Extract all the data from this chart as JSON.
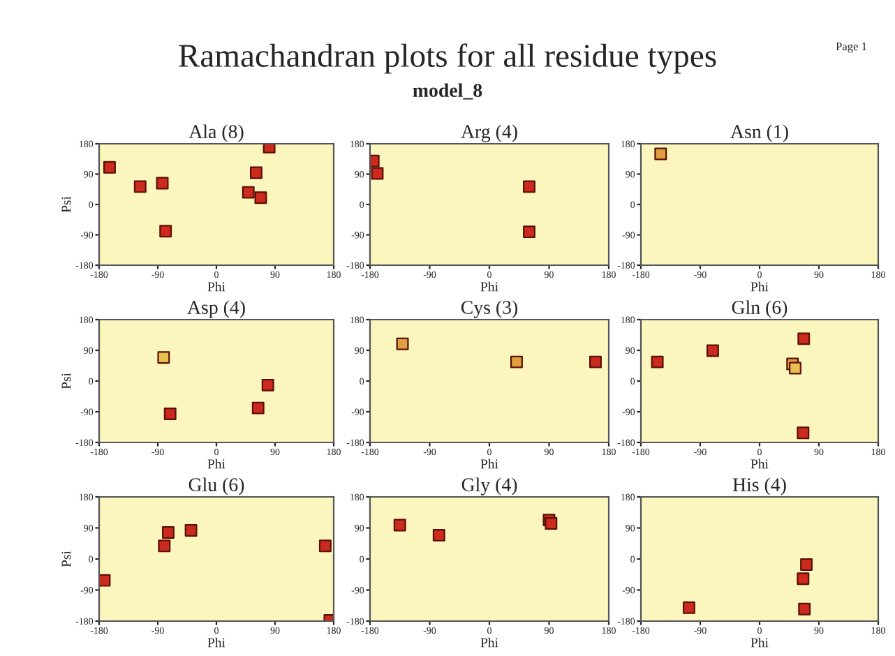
{
  "chart_data": [
    {
      "type": "other",
      "title": "Ramachandran plots for all residue types",
      "subtitle": "model_8",
      "annotations": [
        "Page 1"
      ]
    },
    {
      "type": "scatter",
      "title": "Ala (8)",
      "xlabel": "Phi",
      "ylabel": "Psi",
      "xlim": [
        -180,
        180
      ],
      "ylim": [
        -180,
        180
      ],
      "xticks": [
        -180,
        -90,
        0,
        90,
        180
      ],
      "yticks": [
        -180,
        -90,
        0,
        90,
        180
      ],
      "marker": "square",
      "grid": false,
      "x": [
        -164,
        -117,
        -83,
        -78,
        81,
        61,
        49,
        68
      ],
      "values": [
        110,
        53,
        63,
        -79,
        170,
        94,
        36,
        20
      ],
      "colors": [
        "#cc2a1c",
        "#cc2a1c",
        "#cc2a1c",
        "#cc2a1c",
        "#cc2a1c",
        "#cc2a1c",
        "#cc2a1c",
        "#cc2a1c"
      ]
    },
    {
      "type": "scatter",
      "title": "Arg (4)",
      "xlabel": "Phi",
      "xlim": [
        -180,
        180
      ],
      "ylim": [
        -180,
        180
      ],
      "xticks": [
        -180,
        -90,
        0,
        90,
        180
      ],
      "yticks": [
        -180,
        -90,
        0,
        90,
        180
      ],
      "marker": "square",
      "grid": false,
      "x": [
        -175,
        -169,
        60,
        60
      ],
      "values": [
        129,
        92,
        53,
        -81
      ],
      "colors": [
        "#cc2a1c",
        "#cc2a1c",
        "#cc2a1c",
        "#cc2a1c"
      ]
    },
    {
      "type": "scatter",
      "title": "Asn (1)",
      "xlabel": "Phi",
      "xlim": [
        -180,
        180
      ],
      "ylim": [
        -180,
        180
      ],
      "xticks": [
        -180,
        -90,
        0,
        90,
        180
      ],
      "yticks": [
        -180,
        -90,
        0,
        90,
        180
      ],
      "marker": "square",
      "grid": false,
      "x": [
        -150
      ],
      "values": [
        150
      ],
      "colors": [
        "#e0a040"
      ]
    },
    {
      "type": "scatter",
      "title": "Asp (4)",
      "xlabel": "Phi",
      "ylabel": "Psi",
      "xlim": [
        -180,
        180
      ],
      "ylim": [
        -180,
        180
      ],
      "xticks": [
        -180,
        -90,
        0,
        90,
        180
      ],
      "yticks": [
        -180,
        -90,
        0,
        90,
        180
      ],
      "marker": "square",
      "grid": false,
      "x": [
        -81,
        79,
        64,
        -71
      ],
      "values": [
        69,
        -12,
        -79,
        -96
      ],
      "colors": [
        "#e8c050",
        "#cc2a1c",
        "#cc2a1c",
        "#cc2a1c"
      ]
    },
    {
      "type": "scatter",
      "title": "Cys (3)",
      "xlabel": "Phi",
      "xlim": [
        -180,
        180
      ],
      "ylim": [
        -180,
        180
      ],
      "xticks": [
        -180,
        -90,
        0,
        90,
        180
      ],
      "yticks": [
        -180,
        -90,
        0,
        90,
        180
      ],
      "marker": "square",
      "grid": false,
      "x": [
        -131,
        41,
        160
      ],
      "values": [
        109,
        56,
        56
      ],
      "colors": [
        "#e0a040",
        "#e0a040",
        "#cc2a1c"
      ]
    },
    {
      "type": "scatter",
      "title": "Gln (6)",
      "xlabel": "Phi",
      "xlim": [
        -180,
        180
      ],
      "ylim": [
        -180,
        180
      ],
      "xticks": [
        -180,
        -90,
        0,
        90,
        180
      ],
      "yticks": [
        -180,
        -90,
        0,
        90,
        180
      ],
      "marker": "square",
      "grid": false,
      "x": [
        -155,
        -71,
        67,
        50,
        54,
        66
      ],
      "values": [
        56,
        89,
        124,
        50,
        38,
        -152
      ],
      "colors": [
        "#cc2a1c",
        "#cc2a1c",
        "#cc2a1c",
        "#e0a040",
        "#e8c050",
        "#cc2a1c"
      ]
    },
    {
      "type": "scatter",
      "title": "Glu (6)",
      "xlabel": "Phi",
      "ylabel": "Psi",
      "xlim": [
        -180,
        180
      ],
      "ylim": [
        -180,
        180
      ],
      "xticks": [
        -180,
        -90,
        0,
        90,
        180
      ],
      "yticks": [
        -180,
        -90,
        0,
        90,
        180
      ],
      "marker": "square",
      "grid": false,
      "x": [
        -172,
        -80,
        -74,
        -39,
        167,
        174
      ],
      "values": [
        -62,
        38,
        77,
        83,
        38,
        -178
      ],
      "colors": [
        "#cc2a1c",
        "#cc2a1c",
        "#cc2a1c",
        "#cc2a1c",
        "#cc2a1c",
        "#cc2a1c"
      ]
    },
    {
      "type": "scatter",
      "title": "Gly (4)",
      "xlabel": "Phi",
      "xlim": [
        -180,
        180
      ],
      "ylim": [
        -180,
        180
      ],
      "xticks": [
        -180,
        -90,
        0,
        90,
        180
      ],
      "yticks": [
        -180,
        -90,
        0,
        90,
        180
      ],
      "marker": "square",
      "grid": false,
      "x": [
        -135,
        -76,
        90,
        93
      ],
      "values": [
        98,
        69,
        113,
        103
      ],
      "colors": [
        "#cc2a1c",
        "#cc2a1c",
        "#cc2a1c",
        "#cc2a1c"
      ]
    },
    {
      "type": "scatter",
      "title": "His (4)",
      "xlabel": "Phi",
      "xlim": [
        -180,
        180
      ],
      "ylim": [
        -180,
        180
      ],
      "xticks": [
        -180,
        -90,
        0,
        90,
        180
      ],
      "yticks": [
        -180,
        -90,
        0,
        90,
        180
      ],
      "marker": "square",
      "grid": false,
      "x": [
        -107,
        71,
        66,
        68
      ],
      "values": [
        -141,
        -16,
        -57,
        -145
      ],
      "colors": [
        "#cc2a1c",
        "#cc2a1c",
        "#cc2a1c",
        "#cc2a1c"
      ]
    }
  ]
}
